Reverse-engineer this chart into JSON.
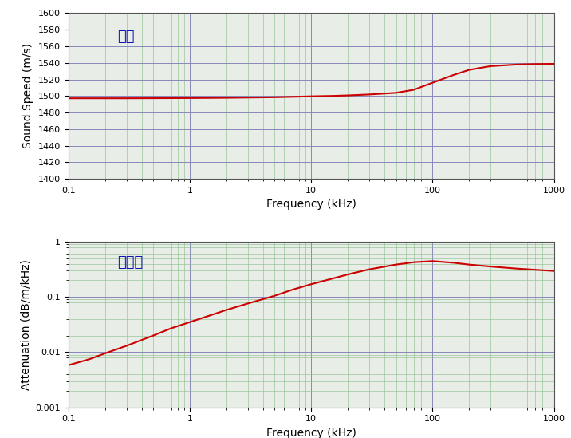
{
  "bg_color": "#ffffff",
  "grid_major_color_blue": "#8888bb",
  "grid_minor_color_green": "#88bb88",
  "line_color": "#cc0000",
  "plot_bg_color": "#e8ede8",
  "freq_range": [
    0.1,
    1000
  ],
  "sound_speed_label": "음속",
  "sound_speed_ylabel": "Sound Speed (m/s)",
  "sound_speed_xlabel": "Frequency (kHz)",
  "sound_speed_ylim": [
    1400,
    1600
  ],
  "sound_speed_yticks": [
    1400,
    1420,
    1440,
    1460,
    1480,
    1500,
    1520,
    1540,
    1560,
    1580,
    1600
  ],
  "attenuation_label": "음감쉬",
  "attenuation_ylabel": "Attenuation (dB/m/kHz)",
  "attenuation_xlabel": "Frequency (kHz)",
  "attenuation_ylim": [
    0.001,
    1.0
  ],
  "speed_freq": [
    0.1,
    0.15,
    0.2,
    0.3,
    0.5,
    0.7,
    1.0,
    2.0,
    3.0,
    5.0,
    7.0,
    10.0,
    15.0,
    20.0,
    30.0,
    50.0,
    70.0,
    100.0,
    150.0,
    200.0,
    300.0,
    500.0,
    700.0,
    1000.0
  ],
  "speed_val": [
    1497.2,
    1497.2,
    1497.2,
    1497.2,
    1497.3,
    1497.4,
    1497.5,
    1497.8,
    1498.1,
    1498.5,
    1499.0,
    1499.6,
    1500.1,
    1500.7,
    1501.8,
    1503.8,
    1507.5,
    1516.0,
    1525.5,
    1531.5,
    1536.0,
    1538.0,
    1538.5,
    1538.8
  ],
  "atten_freq": [
    0.1,
    0.15,
    0.2,
    0.3,
    0.5,
    0.7,
    1.0,
    2.0,
    3.0,
    5.0,
    7.0,
    10.0,
    15.0,
    20.0,
    30.0,
    50.0,
    70.0,
    100.0,
    150.0,
    200.0,
    300.0,
    500.0,
    700.0,
    1000.0
  ],
  "atten_val": [
    0.0058,
    0.0075,
    0.0095,
    0.013,
    0.02,
    0.027,
    0.035,
    0.058,
    0.076,
    0.105,
    0.135,
    0.17,
    0.215,
    0.255,
    0.315,
    0.385,
    0.425,
    0.445,
    0.415,
    0.385,
    0.355,
    0.325,
    0.31,
    0.295
  ],
  "label_fontsize": 10,
  "tick_fontsize": 8,
  "korean_fontsize": 13,
  "label_color": "#1111bb",
  "figsize": [
    7.16,
    5.49
  ],
  "dpi": 100
}
